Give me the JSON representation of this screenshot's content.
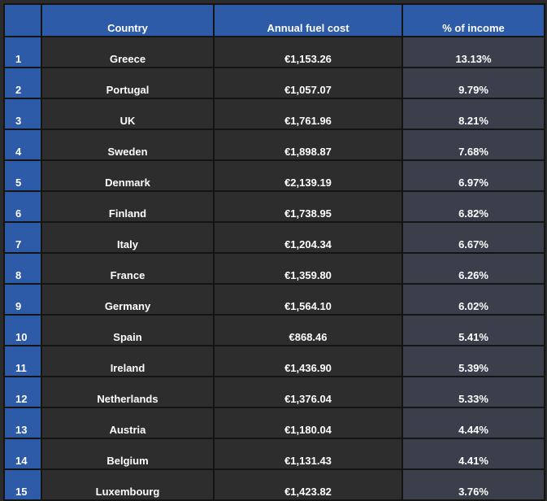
{
  "table": {
    "headers": {
      "rank": "",
      "country": "Country",
      "cost": "Annual fuel cost",
      "pct": "% of income"
    },
    "rows": [
      {
        "rank": "1",
        "country": "Greece",
        "cost": "€1,153.26",
        "pct": "13.13%"
      },
      {
        "rank": "2",
        "country": "Portugal",
        "cost": "€1,057.07",
        "pct": "9.79%"
      },
      {
        "rank": "3",
        "country": "UK",
        "cost": "€1,761.96",
        "pct": "8.21%"
      },
      {
        "rank": "4",
        "country": "Sweden",
        "cost": "€1,898.87",
        "pct": "7.68%"
      },
      {
        "rank": "5",
        "country": "Denmark",
        "cost": "€2,139.19",
        "pct": "6.97%"
      },
      {
        "rank": "6",
        "country": "Finland",
        "cost": "€1,738.95",
        "pct": "6.82%"
      },
      {
        "rank": "7",
        "country": "Italy",
        "cost": "€1,204.34",
        "pct": "6.67%"
      },
      {
        "rank": "8",
        "country": "France",
        "cost": "€1,359.80",
        "pct": "6.26%"
      },
      {
        "rank": "9",
        "country": "Germany",
        "cost": "€1,564.10",
        "pct": "6.02%"
      },
      {
        "rank": "10",
        "country": "Spain",
        "cost": "€868.46",
        "pct": "5.41%"
      },
      {
        "rank": "11",
        "country": "Ireland",
        "cost": "€1,436.90",
        "pct": "5.39%"
      },
      {
        "rank": "12",
        "country": "Netherlands",
        "cost": "€1,376.04",
        "pct": "5.33%"
      },
      {
        "rank": "13",
        "country": "Austria",
        "cost": "€1,180.04",
        "pct": "4.44%"
      },
      {
        "rank": "14",
        "country": "Belgium",
        "cost": "€1,131.43",
        "pct": "4.41%"
      },
      {
        "rank": "15",
        "country": "Luxembourg",
        "cost": "€1,423.82",
        "pct": "3.76%"
      }
    ]
  },
  "colors": {
    "header_blue": "#2e5ba8",
    "cell_dark": "#2d2d2d",
    "cell_pct": "#3a3f4b",
    "grid": "#141414",
    "text": "#ffffff"
  }
}
